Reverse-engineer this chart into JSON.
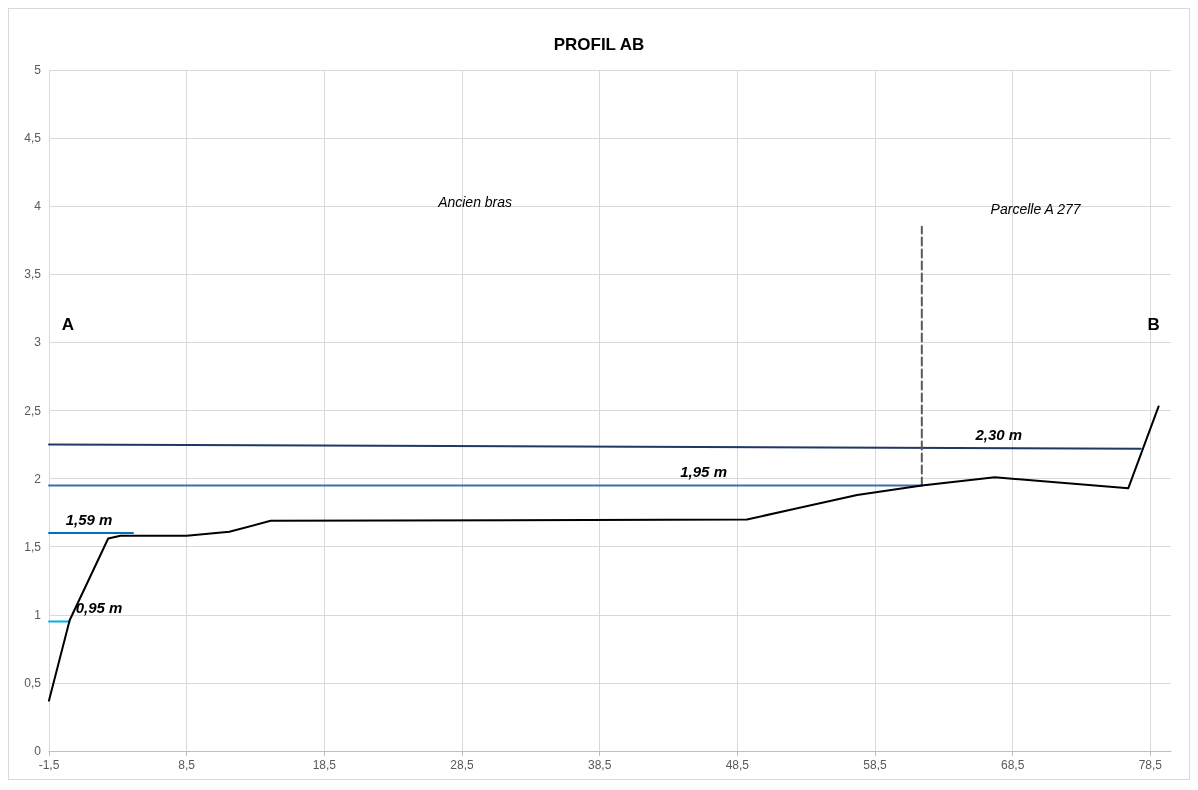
{
  "chart_data": {
    "type": "line",
    "title": "PROFIL AB",
    "xlim": [
      -1.5,
      80
    ],
    "ylim": [
      0,
      5
    ],
    "xticks": [
      {
        "value": -1.5,
        "label": "-1,5"
      },
      {
        "value": 8.5,
        "label": "8,5"
      },
      {
        "value": 18.5,
        "label": "18,5"
      },
      {
        "value": 28.5,
        "label": "28,5"
      },
      {
        "value": 38.5,
        "label": "38,5"
      },
      {
        "value": 48.5,
        "label": "48,5"
      },
      {
        "value": 58.5,
        "label": "58,5"
      },
      {
        "value": 68.5,
        "label": "68,5"
      },
      {
        "value": 78.5,
        "label": "78,5"
      }
    ],
    "yticks": [
      0,
      {
        "value": 0.5,
        "label": "0,5"
      },
      1,
      {
        "value": 1.5,
        "label": "1,5"
      },
      2,
      {
        "value": 2.5,
        "label": "2,5"
      },
      3,
      {
        "value": 3.5,
        "label": "3,5"
      },
      4,
      {
        "value": 4.5,
        "label": "4,5"
      },
      5
    ],
    "grid": true,
    "marker": "none",
    "series": [
      {
        "name": "2,30 m",
        "color": "#1f3864",
        "x": [
          -1.5,
          77.8
        ],
        "values": [
          2.25,
          2.22
        ]
      },
      {
        "name": "1,95 m",
        "color": "#3d6fb0",
        "x": [
          -1.5,
          61.9
        ],
        "values": [
          1.95,
          1.95
        ]
      },
      {
        "name": "1,59 m",
        "color": "#0070c0",
        "x": [
          -1.5,
          4.6
        ],
        "values": [
          1.6,
          1.6
        ]
      },
      {
        "name": "0,95 m",
        "color": "#00b0f0",
        "x": [
          -1.5,
          0
        ],
        "values": [
          0.95,
          0.95
        ]
      },
      {
        "color": "#595959",
        "line_style": "dashed",
        "x": [
          61.9,
          61.9
        ],
        "values": [
          1.95,
          3.85
        ]
      },
      {
        "color": "#000000",
        "x": [
          -1.5,
          0,
          2.8,
          3.7,
          8.5,
          11.6,
          14.6,
          49.2,
          57.2,
          61.9,
          67.2,
          76.9,
          79.1
        ],
        "values": [
          0.37,
          0.96,
          1.56,
          1.58,
          1.58,
          1.61,
          1.69,
          1.7,
          1.88,
          1.95,
          2.01,
          1.93,
          2.53
        ]
      }
    ],
    "annotations": [
      "Ancien bras",
      "Parcelle A 277",
      "A",
      "B"
    ]
  }
}
